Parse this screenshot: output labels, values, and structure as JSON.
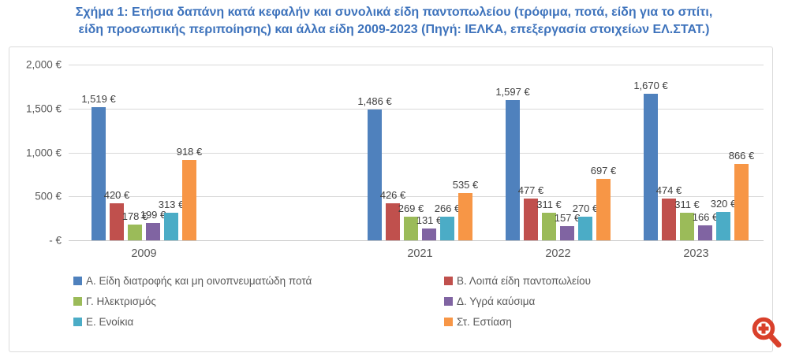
{
  "title": {
    "line1": "Σχήμα 1: Ετήσια δαπάνη κατά κεφαλήν και συνολικά είδη παντοπωλείου (τρόφιμα, ποτά, είδη για το σπίτι,",
    "line2": "είδη προσωπικής περιποίησης) και άλλα είδη 2009-2023 (Πηγή: ΙΕΛΚΑ, επεξεργασία στοιχείων ΕΛ.ΣΤΑΤ.)"
  },
  "colors": {
    "title_text": "#3E73BC",
    "axis_text": "#595959",
    "value_label_text": "#404040",
    "gridline": "#D9D9D9",
    "frame_border": "#DBDBDB",
    "zoom_icon": "#D9402B"
  },
  "chart_data": {
    "type": "bar",
    "categories": [
      "2009",
      "2021",
      "2022",
      "2023"
    ],
    "series": [
      {
        "name": "Α. Είδη διατροφής και μη οινοπνευματώδη ποτά",
        "color": "#4F81BD",
        "values": [
          1519,
          1486,
          1597,
          1670
        ]
      },
      {
        "name": "Β. Λοιπά είδη παντοπωλείου",
        "color": "#C0504D",
        "values": [
          420,
          426,
          477,
          474
        ]
      },
      {
        "name": "Γ. Ηλεκτρισμός",
        "color": "#9BBB59",
        "values": [
          178,
          269,
          311,
          311
        ]
      },
      {
        "name": "Δ. Υγρά καύσιμα",
        "color": "#8064A2",
        "values": [
          199,
          131,
          157,
          166
        ]
      },
      {
        "name": "Ε. Ενοίκια",
        "color": "#4BACC6",
        "values": [
          313,
          266,
          270,
          320
        ]
      },
      {
        "name": "Στ. Εστίαση",
        "color": "#F79646",
        "values": [
          918,
          535,
          697,
          866
        ]
      }
    ],
    "ylim": [
      0,
      2000
    ],
    "y_tick_labels": [
      "2,000 €",
      "1,500 €",
      "1,000 €",
      "500 €",
      "- €"
    ],
    "y_tick_values": [
      2000,
      1500,
      1000,
      500,
      0
    ],
    "grid": true,
    "value_labels": true,
    "value_label_suffix": " €",
    "thousands_separator": ",",
    "legend_position": "bottom",
    "legend_columns": 2,
    "category_slot_count": 5,
    "category_slot_index": [
      0,
      2,
      3,
      4
    ],
    "layout_note": "empty category slot between 2009 and 2021 (time gap)"
  },
  "zoom_button": {
    "label": "zoom-in"
  }
}
